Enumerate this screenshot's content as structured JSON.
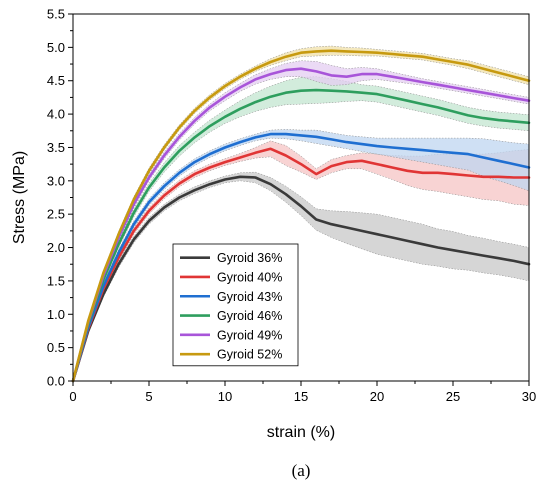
{
  "chart_data": {
    "type": "line",
    "xlabel": "strain (%)",
    "ylabel": "Stress (MPa)",
    "panel_label": "(a)",
    "xlim": [
      0,
      30
    ],
    "ylim": [
      0,
      5.5
    ],
    "xticks": [
      0,
      5,
      10,
      15,
      20,
      25,
      30
    ],
    "yticks": [
      0.0,
      0.5,
      1.0,
      1.5,
      2.0,
      2.5,
      3.0,
      3.5,
      4.0,
      4.5,
      5.0,
      5.5
    ],
    "legend_position": "lower-left",
    "x": [
      0,
      1,
      2,
      3,
      4,
      5,
      6,
      7,
      8,
      9,
      10,
      11,
      12,
      13,
      14,
      15,
      16,
      17,
      18,
      19,
      20,
      21,
      22,
      23,
      24,
      25,
      26,
      27,
      28,
      29,
      30
    ],
    "series": [
      {
        "name": "Gyroid 36%",
        "color": "#3a3a3a",
        "band_color": "#c8c8c8",
        "values": [
          0.0,
          0.75,
          1.3,
          1.75,
          2.12,
          2.4,
          2.6,
          2.75,
          2.86,
          2.95,
          3.02,
          3.06,
          3.05,
          2.95,
          2.8,
          2.62,
          2.42,
          2.35,
          2.3,
          2.25,
          2.2,
          2.15,
          2.1,
          2.05,
          2.0,
          1.96,
          1.92,
          1.88,
          1.84,
          1.8,
          1.75
        ],
        "band": [
          0,
          0.03,
          0.04,
          0.05,
          0.05,
          0.05,
          0.05,
          0.05,
          0.05,
          0.05,
          0.05,
          0.06,
          0.08,
          0.1,
          0.12,
          0.14,
          0.16,
          0.2,
          0.24,
          0.27,
          0.3,
          0.3,
          0.3,
          0.3,
          0.28,
          0.28,
          0.26,
          0.26,
          0.25,
          0.25,
          0.25
        ]
      },
      {
        "name": "Gyroid 40%",
        "color": "#e03535",
        "band_color": "#f6c4c4",
        "values": [
          0.0,
          0.78,
          1.38,
          1.85,
          2.25,
          2.55,
          2.78,
          2.96,
          3.1,
          3.2,
          3.28,
          3.35,
          3.42,
          3.48,
          3.38,
          3.25,
          3.1,
          3.22,
          3.28,
          3.3,
          3.25,
          3.2,
          3.15,
          3.12,
          3.12,
          3.1,
          3.08,
          3.06,
          3.06,
          3.05,
          3.05
        ],
        "band": [
          0,
          0.03,
          0.04,
          0.05,
          0.05,
          0.05,
          0.05,
          0.05,
          0.05,
          0.05,
          0.05,
          0.06,
          0.08,
          0.12,
          0.15,
          0.12,
          0.08,
          0.1,
          0.1,
          0.12,
          0.15,
          0.18,
          0.22,
          0.25,
          0.28,
          0.3,
          0.32,
          0.34,
          0.36,
          0.4,
          0.42
        ]
      },
      {
        "name": "Gyroid 43%",
        "color": "#1f6fd1",
        "band_color": "#bfd5f0",
        "values": [
          0.0,
          0.8,
          1.42,
          1.92,
          2.35,
          2.68,
          2.92,
          3.12,
          3.28,
          3.4,
          3.5,
          3.58,
          3.65,
          3.7,
          3.7,
          3.68,
          3.66,
          3.62,
          3.58,
          3.55,
          3.52,
          3.5,
          3.48,
          3.46,
          3.44,
          3.42,
          3.4,
          3.35,
          3.3,
          3.25,
          3.2
        ],
        "band": [
          0,
          0.03,
          0.04,
          0.05,
          0.05,
          0.05,
          0.05,
          0.05,
          0.05,
          0.05,
          0.05,
          0.05,
          0.05,
          0.06,
          0.07,
          0.08,
          0.1,
          0.1,
          0.1,
          0.11,
          0.12,
          0.14,
          0.16,
          0.18,
          0.2,
          0.22,
          0.24,
          0.28,
          0.3,
          0.32,
          0.35
        ]
      },
      {
        "name": "Gyroid 46%",
        "color": "#2e9e5e",
        "band_color": "#c3e6d0",
        "values": [
          0.0,
          0.85,
          1.52,
          2.05,
          2.52,
          2.9,
          3.2,
          3.45,
          3.65,
          3.82,
          3.96,
          4.08,
          4.18,
          4.26,
          4.32,
          4.35,
          4.36,
          4.35,
          4.34,
          4.32,
          4.3,
          4.25,
          4.2,
          4.15,
          4.1,
          4.04,
          3.98,
          3.94,
          3.91,
          3.89,
          3.87
        ],
        "band": [
          0,
          0.03,
          0.04,
          0.05,
          0.06,
          0.06,
          0.07,
          0.08,
          0.08,
          0.09,
          0.1,
          0.12,
          0.14,
          0.16,
          0.18,
          0.2,
          0.2,
          0.18,
          0.15,
          0.12,
          0.12,
          0.12,
          0.12,
          0.12,
          0.12,
          0.12,
          0.12,
          0.12,
          0.12,
          0.12,
          0.12
        ]
      },
      {
        "name": "Gyroid 49%",
        "color": "#a855d9",
        "band_color": "#e4cdf2",
        "values": [
          0.0,
          0.88,
          1.58,
          2.15,
          2.65,
          3.05,
          3.38,
          3.66,
          3.9,
          4.1,
          4.26,
          4.4,
          4.52,
          4.6,
          4.66,
          4.68,
          4.64,
          4.58,
          4.56,
          4.6,
          4.6,
          4.56,
          4.52,
          4.48,
          4.44,
          4.4,
          4.36,
          4.32,
          4.28,
          4.24,
          4.2
        ],
        "band": [
          0,
          0.03,
          0.04,
          0.05,
          0.05,
          0.05,
          0.05,
          0.05,
          0.05,
          0.05,
          0.06,
          0.06,
          0.07,
          0.08,
          0.1,
          0.12,
          0.15,
          0.15,
          0.12,
          0.1,
          0.08,
          0.07,
          0.06,
          0.05,
          0.05,
          0.05,
          0.05,
          0.05,
          0.05,
          0.05,
          0.05
        ]
      },
      {
        "name": "Gyroid 52%",
        "color": "#c79a10",
        "band_color": "#f0e0a8",
        "values": [
          0.0,
          0.9,
          1.62,
          2.2,
          2.72,
          3.15,
          3.5,
          3.8,
          4.05,
          4.25,
          4.42,
          4.56,
          4.68,
          4.78,
          4.86,
          4.92,
          4.94,
          4.95,
          4.94,
          4.93,
          4.92,
          4.9,
          4.88,
          4.86,
          4.82,
          4.78,
          4.74,
          4.68,
          4.62,
          4.56,
          4.5
        ],
        "band": [
          0,
          0.02,
          0.03,
          0.04,
          0.04,
          0.04,
          0.04,
          0.04,
          0.04,
          0.04,
          0.04,
          0.04,
          0.04,
          0.05,
          0.06,
          0.06,
          0.07,
          0.07,
          0.06,
          0.06,
          0.05,
          0.05,
          0.05,
          0.05,
          0.05,
          0.05,
          0.06,
          0.06,
          0.06,
          0.06,
          0.06
        ]
      }
    ]
  }
}
